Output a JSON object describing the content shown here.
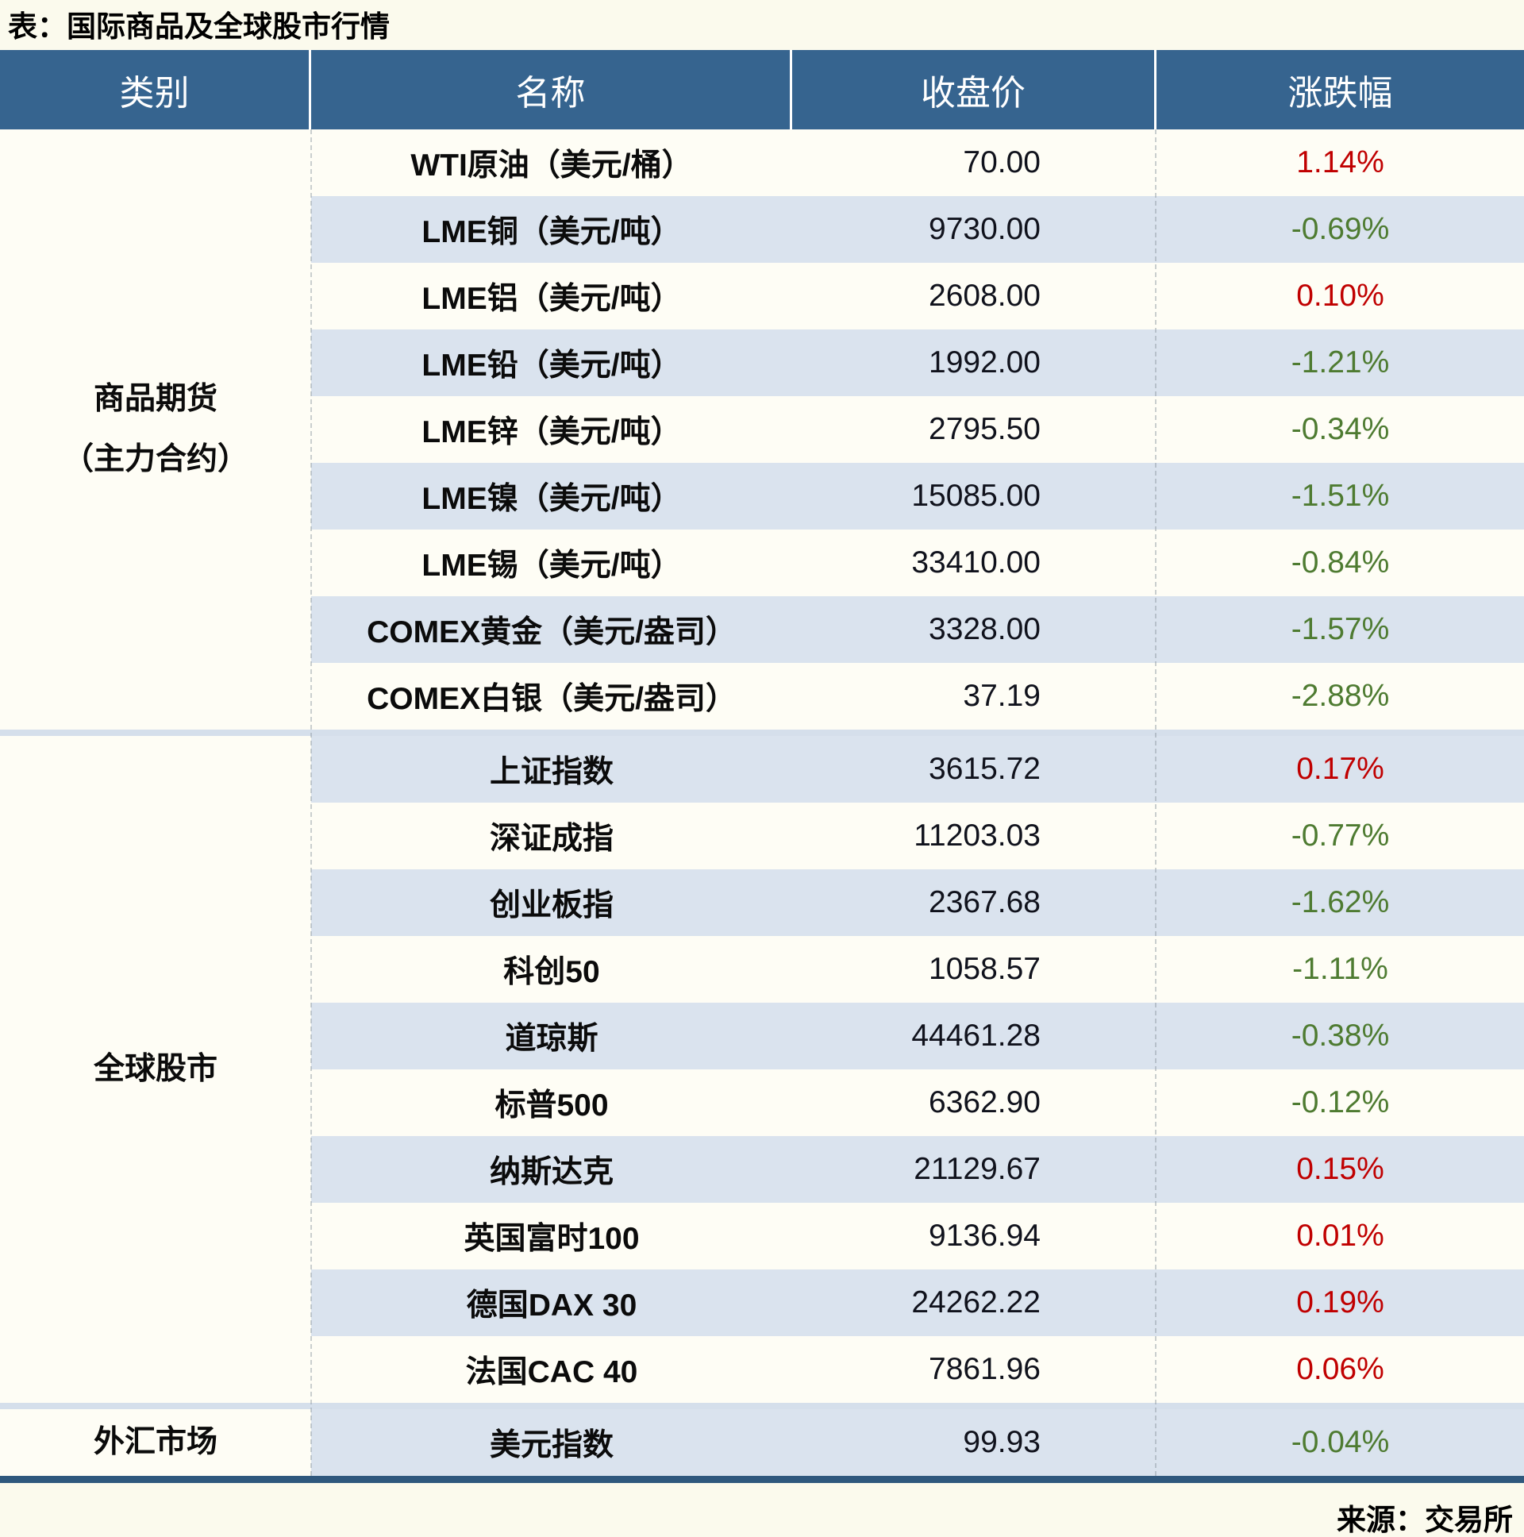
{
  "title": "表：国际商品及全球股市行情",
  "source": "来源：交易所",
  "header": {
    "category": "类别",
    "name": "名称",
    "close": "收盘价",
    "change": "涨跌幅"
  },
  "colors": {
    "up_red": "#C00000",
    "down_green": "#4E7B31",
    "header_bg": "#36648F",
    "row_alt_blue": "#DAE3EE",
    "bottom_rule": "#2F587D"
  },
  "chart_data": {
    "type": "table",
    "title": "表：国际商品及全球股市行情",
    "columns": [
      "类别",
      "名称",
      "收盘价",
      "涨跌幅"
    ],
    "sections": [
      {
        "category_lines": [
          "商品期货",
          "（主力合约）"
        ],
        "rows": [
          {
            "name": "WTI原油（美元/桶）",
            "close": "70.00",
            "change": "1.14%"
          },
          {
            "name": "LME铜（美元/吨）",
            "close": "9730.00",
            "change": "-0.69%"
          },
          {
            "name": "LME铝（美元/吨）",
            "close": "2608.00",
            "change": "0.10%"
          },
          {
            "name": "LME铅（美元/吨）",
            "close": "1992.00",
            "change": "-1.21%"
          },
          {
            "name": "LME锌（美元/吨）",
            "close": "2795.50",
            "change": "-0.34%"
          },
          {
            "name": "LME镍（美元/吨）",
            "close": "15085.00",
            "change": "-1.51%"
          },
          {
            "name": "LME锡（美元/吨）",
            "close": "33410.00",
            "change": "-0.84%"
          },
          {
            "name": "COMEX黄金（美元/盎司）",
            "close": "3328.00",
            "change": "-1.57%"
          },
          {
            "name": "COMEX白银（美元/盎司）",
            "close": "37.19",
            "change": "-2.88%"
          }
        ]
      },
      {
        "category_lines": [
          "全球股市"
        ],
        "rows": [
          {
            "name": "上证指数",
            "close": "3615.72",
            "change": "0.17%"
          },
          {
            "name": "深证成指",
            "close": "11203.03",
            "change": "-0.77%"
          },
          {
            "name": "创业板指",
            "close": "2367.68",
            "change": "-1.62%"
          },
          {
            "name": "科创50",
            "close": "1058.57",
            "change": "-1.11%"
          },
          {
            "name": "道琼斯",
            "close": "44461.28",
            "change": "-0.38%"
          },
          {
            "name": "标普500",
            "close": "6362.90",
            "change": "-0.12%"
          },
          {
            "name": "纳斯达克",
            "close": "21129.67",
            "change": "0.15%"
          },
          {
            "name": "英国富时100",
            "close": "9136.94",
            "change": "0.01%"
          },
          {
            "name": "德国DAX 30",
            "close": "24262.22",
            "change": "0.19%"
          },
          {
            "name": "法国CAC 40",
            "close": "7861.96",
            "change": "0.06%"
          }
        ]
      },
      {
        "category_lines": [
          "外汇市场"
        ],
        "rows": [
          {
            "name": "美元指数",
            "close": "99.93",
            "change": "-0.04%"
          }
        ]
      }
    ]
  }
}
